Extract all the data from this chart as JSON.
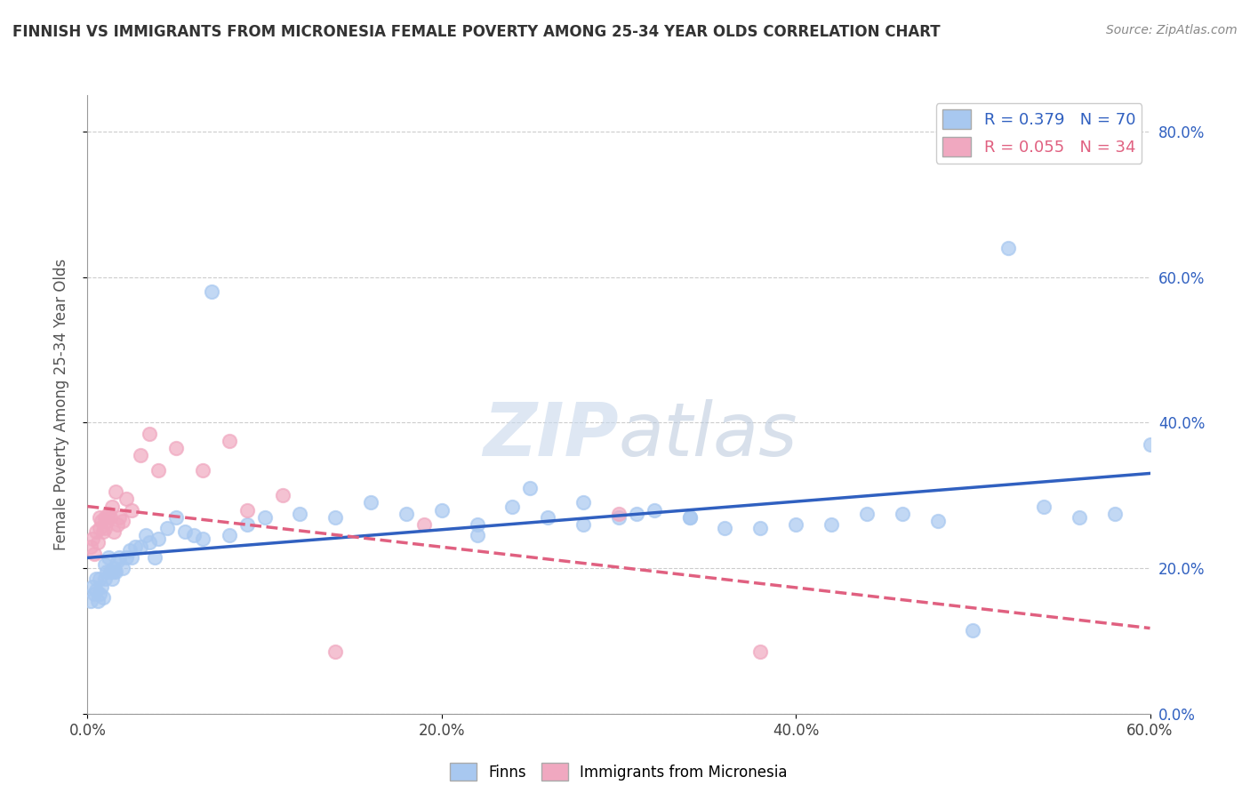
{
  "title": "FINNISH VS IMMIGRANTS FROM MICRONESIA FEMALE POVERTY AMONG 25-34 YEAR OLDS CORRELATION CHART",
  "source": "Source: ZipAtlas.com",
  "ylabel": "Female Poverty Among 25-34 Year Olds",
  "xlim": [
    0.0,
    0.6
  ],
  "ylim": [
    0.0,
    0.85
  ],
  "yticks": [
    0.0,
    0.2,
    0.4,
    0.6,
    0.8
  ],
  "xticks": [
    0.0,
    0.2,
    0.4,
    0.6
  ],
  "xtick_labels": [
    "0.0%",
    "20.0%",
    "40.0%",
    "60.0%"
  ],
  "ytick_labels_right": [
    "0.0%",
    "20.0%",
    "40.0%",
    "60.0%",
    "80.0%"
  ],
  "blue_scatter_color": "#A8C8F0",
  "pink_scatter_color": "#F0A8C0",
  "blue_line_color": "#3060C0",
  "pink_line_color": "#E06080",
  "watermark_color": "#C8D8EC",
  "legend_r_blue": "R = 0.379",
  "legend_n_blue": "N = 70",
  "legend_r_pink": "R = 0.055",
  "legend_n_pink": "N = 34",
  "legend_label_blue": "Finns",
  "legend_label_pink": "Immigrants from Micronesia",
  "finns_x": [
    0.002,
    0.003,
    0.004,
    0.005,
    0.005,
    0.006,
    0.007,
    0.007,
    0.008,
    0.009,
    0.01,
    0.01,
    0.011,
    0.012,
    0.013,
    0.014,
    0.015,
    0.015,
    0.016,
    0.017,
    0.018,
    0.02,
    0.022,
    0.024,
    0.025,
    0.027,
    0.03,
    0.033,
    0.035,
    0.038,
    0.04,
    0.045,
    0.05,
    0.055,
    0.06,
    0.065,
    0.07,
    0.08,
    0.09,
    0.1,
    0.12,
    0.14,
    0.16,
    0.18,
    0.2,
    0.22,
    0.24,
    0.26,
    0.28,
    0.3,
    0.32,
    0.34,
    0.36,
    0.38,
    0.4,
    0.42,
    0.44,
    0.46,
    0.48,
    0.5,
    0.22,
    0.25,
    0.28,
    0.31,
    0.34,
    0.52,
    0.54,
    0.56,
    0.58,
    0.6
  ],
  "finns_y": [
    0.155,
    0.175,
    0.165,
    0.17,
    0.185,
    0.155,
    0.165,
    0.185,
    0.175,
    0.16,
    0.185,
    0.205,
    0.195,
    0.215,
    0.195,
    0.185,
    0.195,
    0.2,
    0.195,
    0.21,
    0.215,
    0.2,
    0.215,
    0.225,
    0.215,
    0.23,
    0.23,
    0.245,
    0.235,
    0.215,
    0.24,
    0.255,
    0.27,
    0.25,
    0.245,
    0.24,
    0.58,
    0.245,
    0.26,
    0.27,
    0.275,
    0.27,
    0.29,
    0.275,
    0.28,
    0.26,
    0.285,
    0.27,
    0.26,
    0.27,
    0.28,
    0.27,
    0.255,
    0.255,
    0.26,
    0.26,
    0.275,
    0.275,
    0.265,
    0.115,
    0.245,
    0.31,
    0.29,
    0.275,
    0.27,
    0.64,
    0.285,
    0.27,
    0.275,
    0.37
  ],
  "micro_x": [
    0.002,
    0.003,
    0.004,
    0.005,
    0.006,
    0.007,
    0.007,
    0.008,
    0.009,
    0.01,
    0.01,
    0.011,
    0.012,
    0.013,
    0.014,
    0.015,
    0.016,
    0.017,
    0.018,
    0.02,
    0.022,
    0.025,
    0.03,
    0.035,
    0.04,
    0.05,
    0.065,
    0.08,
    0.09,
    0.11,
    0.14,
    0.19,
    0.3,
    0.38
  ],
  "micro_y": [
    0.23,
    0.24,
    0.22,
    0.25,
    0.235,
    0.27,
    0.255,
    0.265,
    0.25,
    0.27,
    0.255,
    0.265,
    0.275,
    0.27,
    0.285,
    0.25,
    0.305,
    0.26,
    0.27,
    0.265,
    0.295,
    0.28,
    0.355,
    0.385,
    0.335,
    0.365,
    0.335,
    0.375,
    0.28,
    0.3,
    0.085,
    0.26,
    0.275,
    0.085
  ],
  "bg_color": "#FFFFFF",
  "grid_color": "#CCCCCC"
}
